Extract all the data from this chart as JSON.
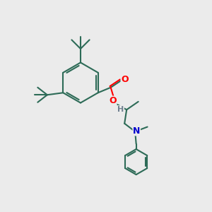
{
  "background_color": "#ebebeb",
  "bond_color": "#2d6b57",
  "bond_width": 1.5,
  "atom_colors": {
    "O": "#ff0000",
    "N": "#0000cd",
    "H": "#708090",
    "C": "#2d6b57"
  },
  "figsize": [
    3.0,
    3.0
  ],
  "dpi": 100
}
